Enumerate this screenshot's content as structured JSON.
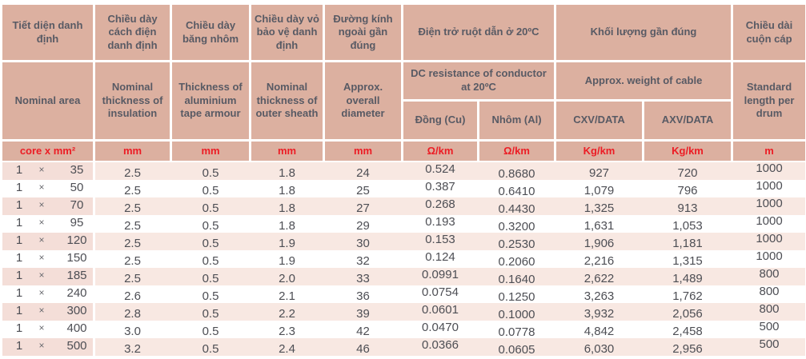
{
  "symbols": {
    "times": "×"
  },
  "header": {
    "vn": {
      "nominal_area": "Tiết diện danh định",
      "insulation": "Chiều dày cách điện danh định",
      "tape": "Chiều dày băng nhôm",
      "sheath": "Chiều dày vỏ bảo vệ danh định",
      "diameter": "Đường kính ngoài gần đúng",
      "resistance": "Điện trở ruột dẫn ở 20ºC",
      "weight": "Khối lượng gần đúng",
      "length": "Chiều dài cuộn cáp"
    },
    "en": {
      "nominal_area": "Nominal area",
      "insulation": "Nominal thickness of insulation",
      "tape": "Thickness of aluminium tape armour",
      "sheath": "Nominal thickness of outer sheath",
      "diameter": "Approx. overall diameter",
      "resistance": "DC resistance of conductor at 20ºC",
      "weight": "Approx. weight of cable",
      "length": "Standard length per drum"
    },
    "sub": {
      "cu": "Đồng (Cu)",
      "al": "Nhôm (Al)",
      "cxv": "CXV/DATA",
      "axv": "AXV/DATA"
    },
    "units": [
      "core x mm²",
      "mm",
      "mm",
      "mm",
      "mm",
      "Ω/km",
      "Ω/km",
      "Kg/km",
      "Kg/km",
      "m"
    ]
  },
  "colors": {
    "header_bg": "#dcb0a0",
    "stripe_core_bg": "#f4ded8",
    "stripe_bg": "#f8e8e2",
    "header_text": "#585a64",
    "unit_text": "#ec1c24",
    "data_text": "#4d4e54"
  },
  "rows": [
    {
      "cores": "1",
      "size": "35",
      "insulation": "2.5",
      "tape": "0.5",
      "sheath": "1.8",
      "diameter": "24",
      "cu": "0.524",
      "al": "0.8680",
      "cxv": "927",
      "axv": "720",
      "length": "1000"
    },
    {
      "cores": "1",
      "size": "50",
      "insulation": "2.5",
      "tape": "0.5",
      "sheath": "1.8",
      "diameter": "25",
      "cu": "0.387",
      "al": "0.6410",
      "cxv": "1,079",
      "axv": "796",
      "length": "1000"
    },
    {
      "cores": "1",
      "size": "70",
      "insulation": "2.5",
      "tape": "0.5",
      "sheath": "1.8",
      "diameter": "27",
      "cu": "0.268",
      "al": "0.4430",
      "cxv": "1,325",
      "axv": "913",
      "length": "1000"
    },
    {
      "cores": "1",
      "size": "95",
      "insulation": "2.5",
      "tape": "0.5",
      "sheath": "1.8",
      "diameter": "29",
      "cu": "0.193",
      "al": "0.3200",
      "cxv": "1,631",
      "axv": "1,053",
      "length": "1000"
    },
    {
      "cores": "1",
      "size": "120",
      "insulation": "2.5",
      "tape": "0.5",
      "sheath": "1.9",
      "diameter": "30",
      "cu": "0.153",
      "al": "0.2530",
      "cxv": "1,906",
      "axv": "1,181",
      "length": "1000"
    },
    {
      "cores": "1",
      "size": "150",
      "insulation": "2.5",
      "tape": "0.5",
      "sheath": "1.9",
      "diameter": "32",
      "cu": "0.124",
      "al": "0.2060",
      "cxv": "2,216",
      "axv": "1,315",
      "length": "1000"
    },
    {
      "cores": "1",
      "size": "185",
      "insulation": "2.5",
      "tape": "0.5",
      "sheath": "2.0",
      "diameter": "33",
      "cu": "0.0991",
      "al": "0.1640",
      "cxv": "2,622",
      "axv": "1,489",
      "length": "800"
    },
    {
      "cores": "1",
      "size": "240",
      "insulation": "2.6",
      "tape": "0.5",
      "sheath": "2.1",
      "diameter": "36",
      "cu": "0.0754",
      "al": "0.1250",
      "cxv": "3,263",
      "axv": "1,762",
      "length": "800"
    },
    {
      "cores": "1",
      "size": "300",
      "insulation": "2.8",
      "tape": "0.5",
      "sheath": "2.2",
      "diameter": "39",
      "cu": "0.0601",
      "al": "0.1000",
      "cxv": "3,932",
      "axv": "2,056",
      "length": "800"
    },
    {
      "cores": "1",
      "size": "400",
      "insulation": "3.0",
      "tape": "0.5",
      "sheath": "2.3",
      "diameter": "42",
      "cu": "0.0470",
      "al": "0.0778",
      "cxv": "4,842",
      "axv": "2,458",
      "length": "500"
    },
    {
      "cores": "1",
      "size": "500",
      "insulation": "3.2",
      "tape": "0.5",
      "sheath": "2.4",
      "diameter": "46",
      "cu": "0.0366",
      "al": "0.0605",
      "cxv": "6,030",
      "axv": "2,956",
      "length": "500"
    }
  ]
}
